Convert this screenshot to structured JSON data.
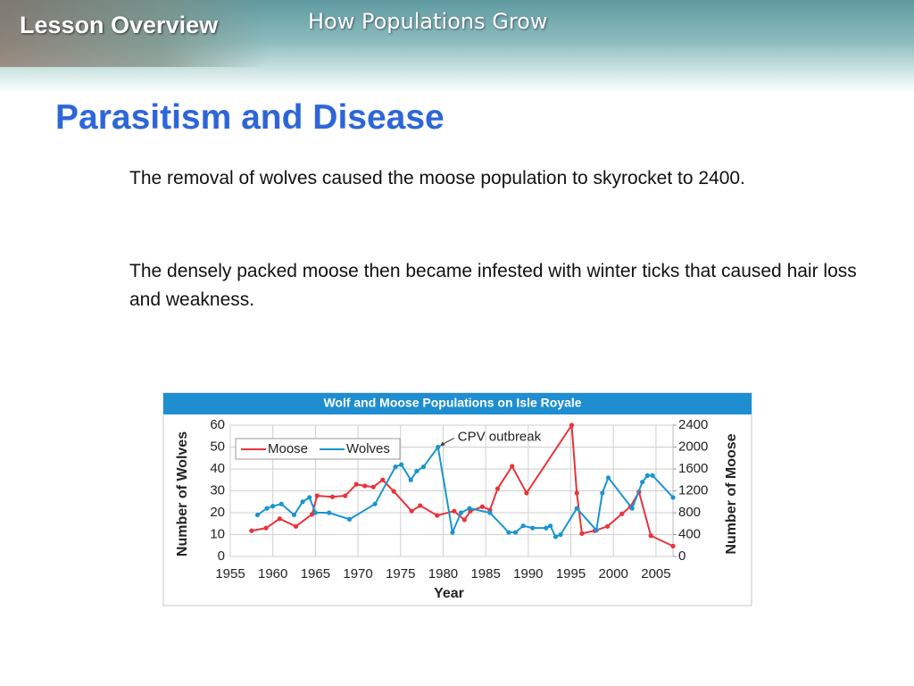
{
  "header": {
    "section": "Lesson Overview",
    "topic": "How Populations Grow"
  },
  "slide": {
    "title": "Parasitism and Disease",
    "paragraphs": [
      "The removal of wolves caused the moose population to skyrocket to 2400.",
      "The densely packed moose then became infested with winter ticks that caused hair loss and weakness."
    ]
  },
  "chart_data": {
    "type": "line",
    "title": "Wolf and  Moose Populations on Isle Royale",
    "xlabel": "Year",
    "ylabel": "Number of Wolves",
    "y2label": "Number of Moose",
    "xlim": [
      1955,
      2007
    ],
    "xticks": [
      1955,
      1960,
      1965,
      1970,
      1975,
      1980,
      1985,
      1990,
      1995,
      2000,
      2005
    ],
    "ylim": [
      0,
      60
    ],
    "yticks": [
      0,
      10,
      20,
      30,
      40,
      50,
      60
    ],
    "y2lim": [
      0,
      2400
    ],
    "y2ticks": [
      0,
      400,
      800,
      1200,
      1600,
      2000,
      2400
    ],
    "grid": true,
    "legend": "top-left",
    "annotation": {
      "text": "CPV outbreak",
      "x": 1979.4,
      "y": 50
    },
    "series": [
      {
        "name": "Moose",
        "color": "#e8333a",
        "axis": "y2",
        "x": [
          1957.5,
          1959.2,
          1960.8,
          1962.7,
          1964.6,
          1965.2,
          1967,
          1968.5,
          1969.8,
          1970.8,
          1971.8,
          1972.9,
          1974.2,
          1976.3,
          1977.3,
          1979.3,
          1981.3,
          1982.5,
          1983.2,
          1984.6,
          1985.5,
          1986.4,
          1988.1,
          1989.8,
          1995.1,
          1995.7,
          1996.3,
          1997.8,
          1999.3,
          2001,
          2002,
          2003,
          2004.4,
          2007
        ],
        "values": [
          470,
          520,
          690,
          550,
          770,
          1110,
          1090,
          1110,
          1320,
          1290,
          1270,
          1400,
          1190,
          830,
          930,
          750,
          830,
          670,
          830,
          910,
          850,
          1240,
          1650,
          1160,
          2400,
          1160,
          420,
          470,
          550,
          780,
          910,
          1180,
          380,
          190
        ]
      },
      {
        "name": "Wolves",
        "color": "#1a95cf",
        "x": [
          1958.2,
          1959.3,
          1960,
          1961,
          1962.5,
          1963.5,
          1964.3,
          1965,
          1966.6,
          1969,
          1972,
          1974.4,
          1975.1,
          1976.2,
          1976.9,
          1977.7,
          1979.4,
          1981.1,
          1982.1,
          1983.1,
          1985.5,
          1987.7,
          1988.5,
          1989.4,
          1990.5,
          1992.1,
          1992.6,
          1993.2,
          1993.8,
          1995.7,
          1998,
          1998.7,
          1999.4,
          2002.2,
          2003.4,
          2004,
          2004.6,
          2007
        ],
        "values": [
          19,
          22,
          23,
          24,
          19,
          25,
          27,
          20,
          20,
          17,
          24,
          41,
          42,
          35,
          39,
          41,
          50,
          11,
          20,
          22,
          20,
          11,
          11,
          14,
          13,
          13,
          14,
          9,
          10,
          22,
          12,
          29,
          36,
          22,
          34,
          37,
          37,
          27
        ]
      }
    ]
  }
}
